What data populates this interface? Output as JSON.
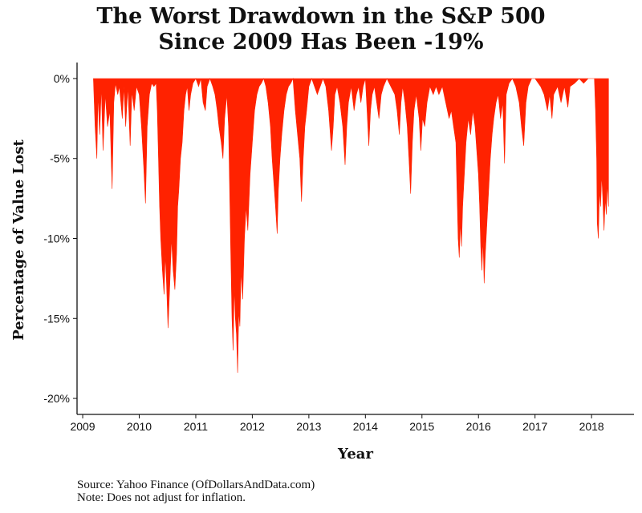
{
  "chart_data": {
    "type": "area",
    "title_lines": [
      "The Worst Drawdown in the S&P 500",
      "Since 2009 Has Been -19%"
    ],
    "xlabel": "Year",
    "ylabel": "Percentage of Value Lost",
    "x_ticks": [
      "2009",
      "2010",
      "2011",
      "2012",
      "2013",
      "2014",
      "2015",
      "2016",
      "2017",
      "2018"
    ],
    "y_ticks": [
      "0%",
      "-5%",
      "-10%",
      "-15%",
      "-20%"
    ],
    "y_tick_values": [
      0,
      -5,
      -10,
      -15,
      -20
    ],
    "xlim": [
      2008.9,
      2018.75
    ],
    "ylim": [
      -21,
      1
    ],
    "series": [
      {
        "name": "Drawdown",
        "color": "#ff2200",
        "points": [
          [
            2009.19,
            0
          ],
          [
            2009.22,
            -3
          ],
          [
            2009.25,
            -5
          ],
          [
            2009.27,
            -1
          ],
          [
            2009.3,
            -3.5
          ],
          [
            2009.33,
            -0.5
          ],
          [
            2009.36,
            -4.5
          ],
          [
            2009.4,
            -1
          ],
          [
            2009.44,
            -3
          ],
          [
            2009.48,
            -2
          ],
          [
            2009.52,
            -6.9
          ],
          [
            2009.55,
            -1.5
          ],
          [
            2009.58,
            -0.3
          ],
          [
            2009.62,
            -1
          ],
          [
            2009.65,
            -0.5
          ],
          [
            2009.7,
            -2.5
          ],
          [
            2009.73,
            -0.5
          ],
          [
            2009.76,
            -3
          ],
          [
            2009.8,
            -0.5
          ],
          [
            2009.84,
            -4.2
          ],
          [
            2009.87,
            -0.8
          ],
          [
            2009.91,
            -2
          ],
          [
            2009.95,
            -0.5
          ],
          [
            2010.0,
            -1
          ],
          [
            2010.04,
            -3
          ],
          [
            2010.08,
            -5.5
          ],
          [
            2010.11,
            -7.8
          ],
          [
            2010.14,
            -3
          ],
          [
            2010.18,
            -1
          ],
          [
            2010.22,
            -0.3
          ],
          [
            2010.26,
            -0.5
          ],
          [
            2010.3,
            -0.3
          ],
          [
            2010.32,
            -2
          ],
          [
            2010.34,
            -5
          ],
          [
            2010.36,
            -8
          ],
          [
            2010.38,
            -10
          ],
          [
            2010.41,
            -12
          ],
          [
            2010.44,
            -13.5
          ],
          [
            2010.46,
            -11
          ],
          [
            2010.48,
            -12.5
          ],
          [
            2010.51,
            -15.6
          ],
          [
            2010.54,
            -13
          ],
          [
            2010.57,
            -10
          ],
          [
            2010.6,
            -12
          ],
          [
            2010.63,
            -13.2
          ],
          [
            2010.66,
            -11
          ],
          [
            2010.68,
            -8
          ],
          [
            2010.7,
            -7
          ],
          [
            2010.73,
            -5
          ],
          [
            2010.76,
            -4
          ],
          [
            2010.79,
            -2
          ],
          [
            2010.82,
            -1
          ],
          [
            2010.85,
            -0.5
          ],
          [
            2010.88,
            -2
          ],
          [
            2010.91,
            -1
          ],
          [
            2010.95,
            -0.3
          ],
          [
            2011.0,
            0
          ],
          [
            2011.05,
            -0.5
          ],
          [
            2011.09,
            0
          ],
          [
            2011.13,
            -1.5
          ],
          [
            2011.17,
            -2
          ],
          [
            2011.2,
            -0.5
          ],
          [
            2011.25,
            0
          ],
          [
            2011.3,
            -0.5
          ],
          [
            2011.34,
            -1
          ],
          [
            2011.38,
            -2
          ],
          [
            2011.41,
            -3
          ],
          [
            2011.45,
            -4
          ],
          [
            2011.48,
            -5
          ],
          [
            2011.51,
            -2.5
          ],
          [
            2011.55,
            -1
          ],
          [
            2011.58,
            -3
          ],
          [
            2011.6,
            -7
          ],
          [
            2011.62,
            -11
          ],
          [
            2011.64,
            -15
          ],
          [
            2011.66,
            -17
          ],
          [
            2011.68,
            -13
          ],
          [
            2011.7,
            -15
          ],
          [
            2011.72,
            -16
          ],
          [
            2011.74,
            -18.4
          ],
          [
            2011.76,
            -14.5
          ],
          [
            2011.78,
            -15.5
          ],
          [
            2011.8,
            -12
          ],
          [
            2011.83,
            -13.8
          ],
          [
            2011.86,
            -10
          ],
          [
            2011.89,
            -8
          ],
          [
            2011.92,
            -9.5
          ],
          [
            2011.96,
            -6
          ],
          [
            2012.0,
            -4
          ],
          [
            2012.04,
            -2
          ],
          [
            2012.08,
            -1
          ],
          [
            2012.12,
            -0.5
          ],
          [
            2012.16,
            -0.3
          ],
          [
            2012.2,
            0
          ],
          [
            2012.24,
            -0.5
          ],
          [
            2012.28,
            -1.5
          ],
          [
            2012.32,
            -3
          ],
          [
            2012.35,
            -5
          ],
          [
            2012.38,
            -6.5
          ],
          [
            2012.41,
            -8
          ],
          [
            2012.44,
            -9.7
          ],
          [
            2012.46,
            -7
          ],
          [
            2012.49,
            -5
          ],
          [
            2012.52,
            -3.5
          ],
          [
            2012.56,
            -2
          ],
          [
            2012.6,
            -1
          ],
          [
            2012.64,
            -0.5
          ],
          [
            2012.68,
            -0.3
          ],
          [
            2012.72,
            0
          ],
          [
            2012.76,
            -2
          ],
          [
            2012.8,
            -3.5
          ],
          [
            2012.84,
            -5
          ],
          [
            2012.87,
            -7.7
          ],
          [
            2012.9,
            -5
          ],
          [
            2012.93,
            -3
          ],
          [
            2012.96,
            -2
          ],
          [
            2013.0,
            -0.5
          ],
          [
            2013.05,
            0
          ],
          [
            2013.1,
            -0.5
          ],
          [
            2013.15,
            -1
          ],
          [
            2013.2,
            -0.5
          ],
          [
            2013.25,
            0
          ],
          [
            2013.3,
            -0.5
          ],
          [
            2013.35,
            -2
          ],
          [
            2013.4,
            -4.5
          ],
          [
            2013.43,
            -3
          ],
          [
            2013.46,
            -1
          ],
          [
            2013.5,
            -0.5
          ],
          [
            2013.55,
            -1.5
          ],
          [
            2013.6,
            -3
          ],
          [
            2013.64,
            -5.4
          ],
          [
            2013.67,
            -3
          ],
          [
            2013.7,
            -1.5
          ],
          [
            2013.75,
            -0.5
          ],
          [
            2013.8,
            -2
          ],
          [
            2013.84,
            -1
          ],
          [
            2013.88,
            -0.5
          ],
          [
            2013.92,
            -1.5
          ],
          [
            2013.96,
            -0.5
          ],
          [
            2014.0,
            0
          ],
          [
            2014.03,
            -2
          ],
          [
            2014.06,
            -4.2
          ],
          [
            2014.09,
            -2
          ],
          [
            2014.12,
            -1
          ],
          [
            2014.16,
            -0.5
          ],
          [
            2014.2,
            -1.5
          ],
          [
            2014.24,
            -2.5
          ],
          [
            2014.28,
            -1
          ],
          [
            2014.32,
            -0.5
          ],
          [
            2014.38,
            0
          ],
          [
            2014.45,
            -0.5
          ],
          [
            2014.52,
            -1
          ],
          [
            2014.56,
            -2
          ],
          [
            2014.6,
            -3.5
          ],
          [
            2014.63,
            -1.5
          ],
          [
            2014.66,
            -0.5
          ],
          [
            2014.7,
            -1.5
          ],
          [
            2014.74,
            -3
          ],
          [
            2014.77,
            -5
          ],
          [
            2014.8,
            -7.2
          ],
          [
            2014.83,
            -4
          ],
          [
            2014.86,
            -2
          ],
          [
            2014.9,
            -1
          ],
          [
            2014.95,
            -2.5
          ],
          [
            2014.98,
            -4.5
          ],
          [
            2015.01,
            -2.5
          ],
          [
            2015.05,
            -3
          ],
          [
            2015.09,
            -1.5
          ],
          [
            2015.14,
            -0.5
          ],
          [
            2015.2,
            -1
          ],
          [
            2015.25,
            -0.5
          ],
          [
            2015.3,
            -1
          ],
          [
            2015.36,
            -0.5
          ],
          [
            2015.42,
            -1.5
          ],
          [
            2015.48,
            -2.5
          ],
          [
            2015.52,
            -2
          ],
          [
            2015.56,
            -3
          ],
          [
            2015.6,
            -4
          ],
          [
            2015.62,
            -7
          ],
          [
            2015.64,
            -10
          ],
          [
            2015.66,
            -11.2
          ],
          [
            2015.68,
            -9
          ],
          [
            2015.7,
            -10.5
          ],
          [
            2015.72,
            -8
          ],
          [
            2015.75,
            -6
          ],
          [
            2015.78,
            -4
          ],
          [
            2015.82,
            -2.5
          ],
          [
            2015.86,
            -3.5
          ],
          [
            2015.9,
            -2
          ],
          [
            2015.94,
            -3
          ],
          [
            2015.97,
            -4.5
          ],
          [
            2016.0,
            -6
          ],
          [
            2016.02,
            -8
          ],
          [
            2016.04,
            -10.5
          ],
          [
            2016.06,
            -12
          ],
          [
            2016.08,
            -10
          ],
          [
            2016.1,
            -12.8
          ],
          [
            2016.12,
            -11
          ],
          [
            2016.15,
            -9
          ],
          [
            2016.18,
            -7
          ],
          [
            2016.21,
            -5
          ],
          [
            2016.24,
            -3.5
          ],
          [
            2016.27,
            -2.5
          ],
          [
            2016.31,
            -1.5
          ],
          [
            2016.35,
            -1
          ],
          [
            2016.39,
            -2.5
          ],
          [
            2016.43,
            -1.5
          ],
          [
            2016.46,
            -5.3
          ],
          [
            2016.49,
            -1
          ],
          [
            2016.54,
            -0.3
          ],
          [
            2016.6,
            0
          ],
          [
            2016.66,
            -0.5
          ],
          [
            2016.72,
            -1.5
          ],
          [
            2016.76,
            -3
          ],
          [
            2016.8,
            -4.2
          ],
          [
            2016.84,
            -1.5
          ],
          [
            2016.88,
            -0.5
          ],
          [
            2016.94,
            0
          ],
          [
            2017.0,
            0
          ],
          [
            2017.1,
            -0.5
          ],
          [
            2017.16,
            -1
          ],
          [
            2017.22,
            -2
          ],
          [
            2017.26,
            -1
          ],
          [
            2017.3,
            -2.5
          ],
          [
            2017.33,
            -1
          ],
          [
            2017.4,
            -0.5
          ],
          [
            2017.46,
            -1.5
          ],
          [
            2017.52,
            -0.5
          ],
          [
            2017.58,
            -1.8
          ],
          [
            2017.62,
            -0.5
          ],
          [
            2017.7,
            -0.3
          ],
          [
            2017.78,
            0
          ],
          [
            2017.86,
            -0.3
          ],
          [
            2017.94,
            0
          ],
          [
            2018.0,
            0
          ],
          [
            2018.05,
            0
          ],
          [
            2018.07,
            -2
          ],
          [
            2018.09,
            -5
          ],
          [
            2018.1,
            -9
          ],
          [
            2018.12,
            -10
          ],
          [
            2018.14,
            -7
          ],
          [
            2018.16,
            -8
          ],
          [
            2018.18,
            -6
          ],
          [
            2018.2,
            -7.5
          ],
          [
            2018.22,
            -9.5
          ],
          [
            2018.24,
            -7.5
          ],
          [
            2018.26,
            -8.5
          ],
          [
            2018.28,
            -6.5
          ],
          [
            2018.3,
            -8
          ]
        ]
      }
    ],
    "grid": false,
    "legend": "none"
  },
  "footer": {
    "source": "Source: Yahoo Finance (OfDollarsAndData.com)",
    "note": "Note: Does not adjust for inflation."
  }
}
